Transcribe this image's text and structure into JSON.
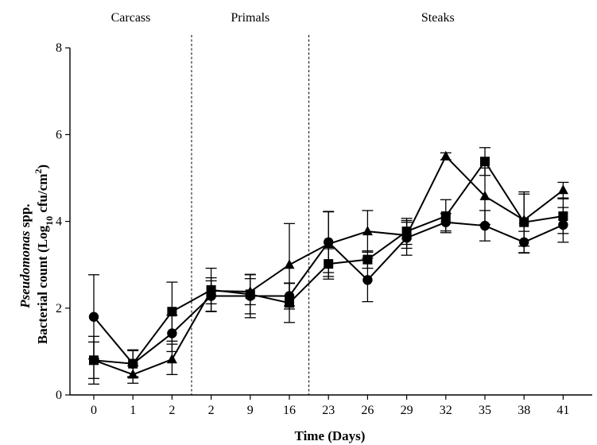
{
  "chart_data": {
    "type": "line",
    "title": "",
    "xlabel": "Time (Days)",
    "ylabel": {
      "line1_italic": "Pseudomonas",
      "line1_rest": " spp.",
      "line2_main": "Bacterial count (Log",
      "line2_sub": "10",
      "line2_mid": " cfu/cm",
      "line2_sup": "2",
      "line2_end": ")"
    },
    "ylim": [
      0,
      8
    ],
    "yticks": [
      "0",
      "2",
      "4",
      "6",
      "8"
    ],
    "categories": [
      "0",
      "1",
      "2",
      "2",
      "9",
      "16",
      "23",
      "26",
      "29",
      "32",
      "35",
      "38",
      "41"
    ],
    "sections": [
      {
        "label": "Carcass",
        "from": 0,
        "to": 2
      },
      {
        "label": "Primals",
        "from": 3,
        "to": 5
      },
      {
        "label": "Steaks",
        "from": 6,
        "to": 12
      }
    ],
    "dividers_after": [
      2,
      5
    ],
    "grid": false,
    "legend": "none",
    "series": [
      {
        "marker": "circle",
        "values": [
          1.8,
          0.72,
          1.42,
          2.28,
          2.28,
          2.28,
          3.52,
          2.65,
          3.62,
          3.98,
          3.9,
          3.52,
          3.92
        ],
        "err": [
          0.97,
          0.32,
          0.42,
          0.35,
          0.5,
          0.3,
          0.7,
          0.5,
          0.4,
          0.2,
          0.35,
          0.25,
          0.4
        ]
      },
      {
        "marker": "square",
        "values": [
          0.8,
          0.72,
          1.92,
          2.42,
          2.32,
          2.12,
          3.02,
          3.12,
          3.77,
          4.12,
          5.38,
          3.98,
          4.12
        ],
        "err": [
          0.42,
          0.3,
          0.68,
          0.5,
          0.45,
          0.45,
          0.35,
          0.2,
          0.3,
          0.38,
          0.32,
          0.7,
          0.4
        ]
      },
      {
        "marker": "triangle",
        "values": [
          0.8,
          0.47,
          0.82,
          2.4,
          2.38,
          3.0,
          3.48,
          3.77,
          3.68,
          5.5,
          4.58,
          4.03,
          4.72
        ],
        "err": [
          0.55,
          0.2,
          0.35,
          0.3,
          0.3,
          0.95,
          0.75,
          0.48,
          0.3,
          0.08,
          0.65,
          0.6,
          0.18
        ]
      }
    ]
  }
}
